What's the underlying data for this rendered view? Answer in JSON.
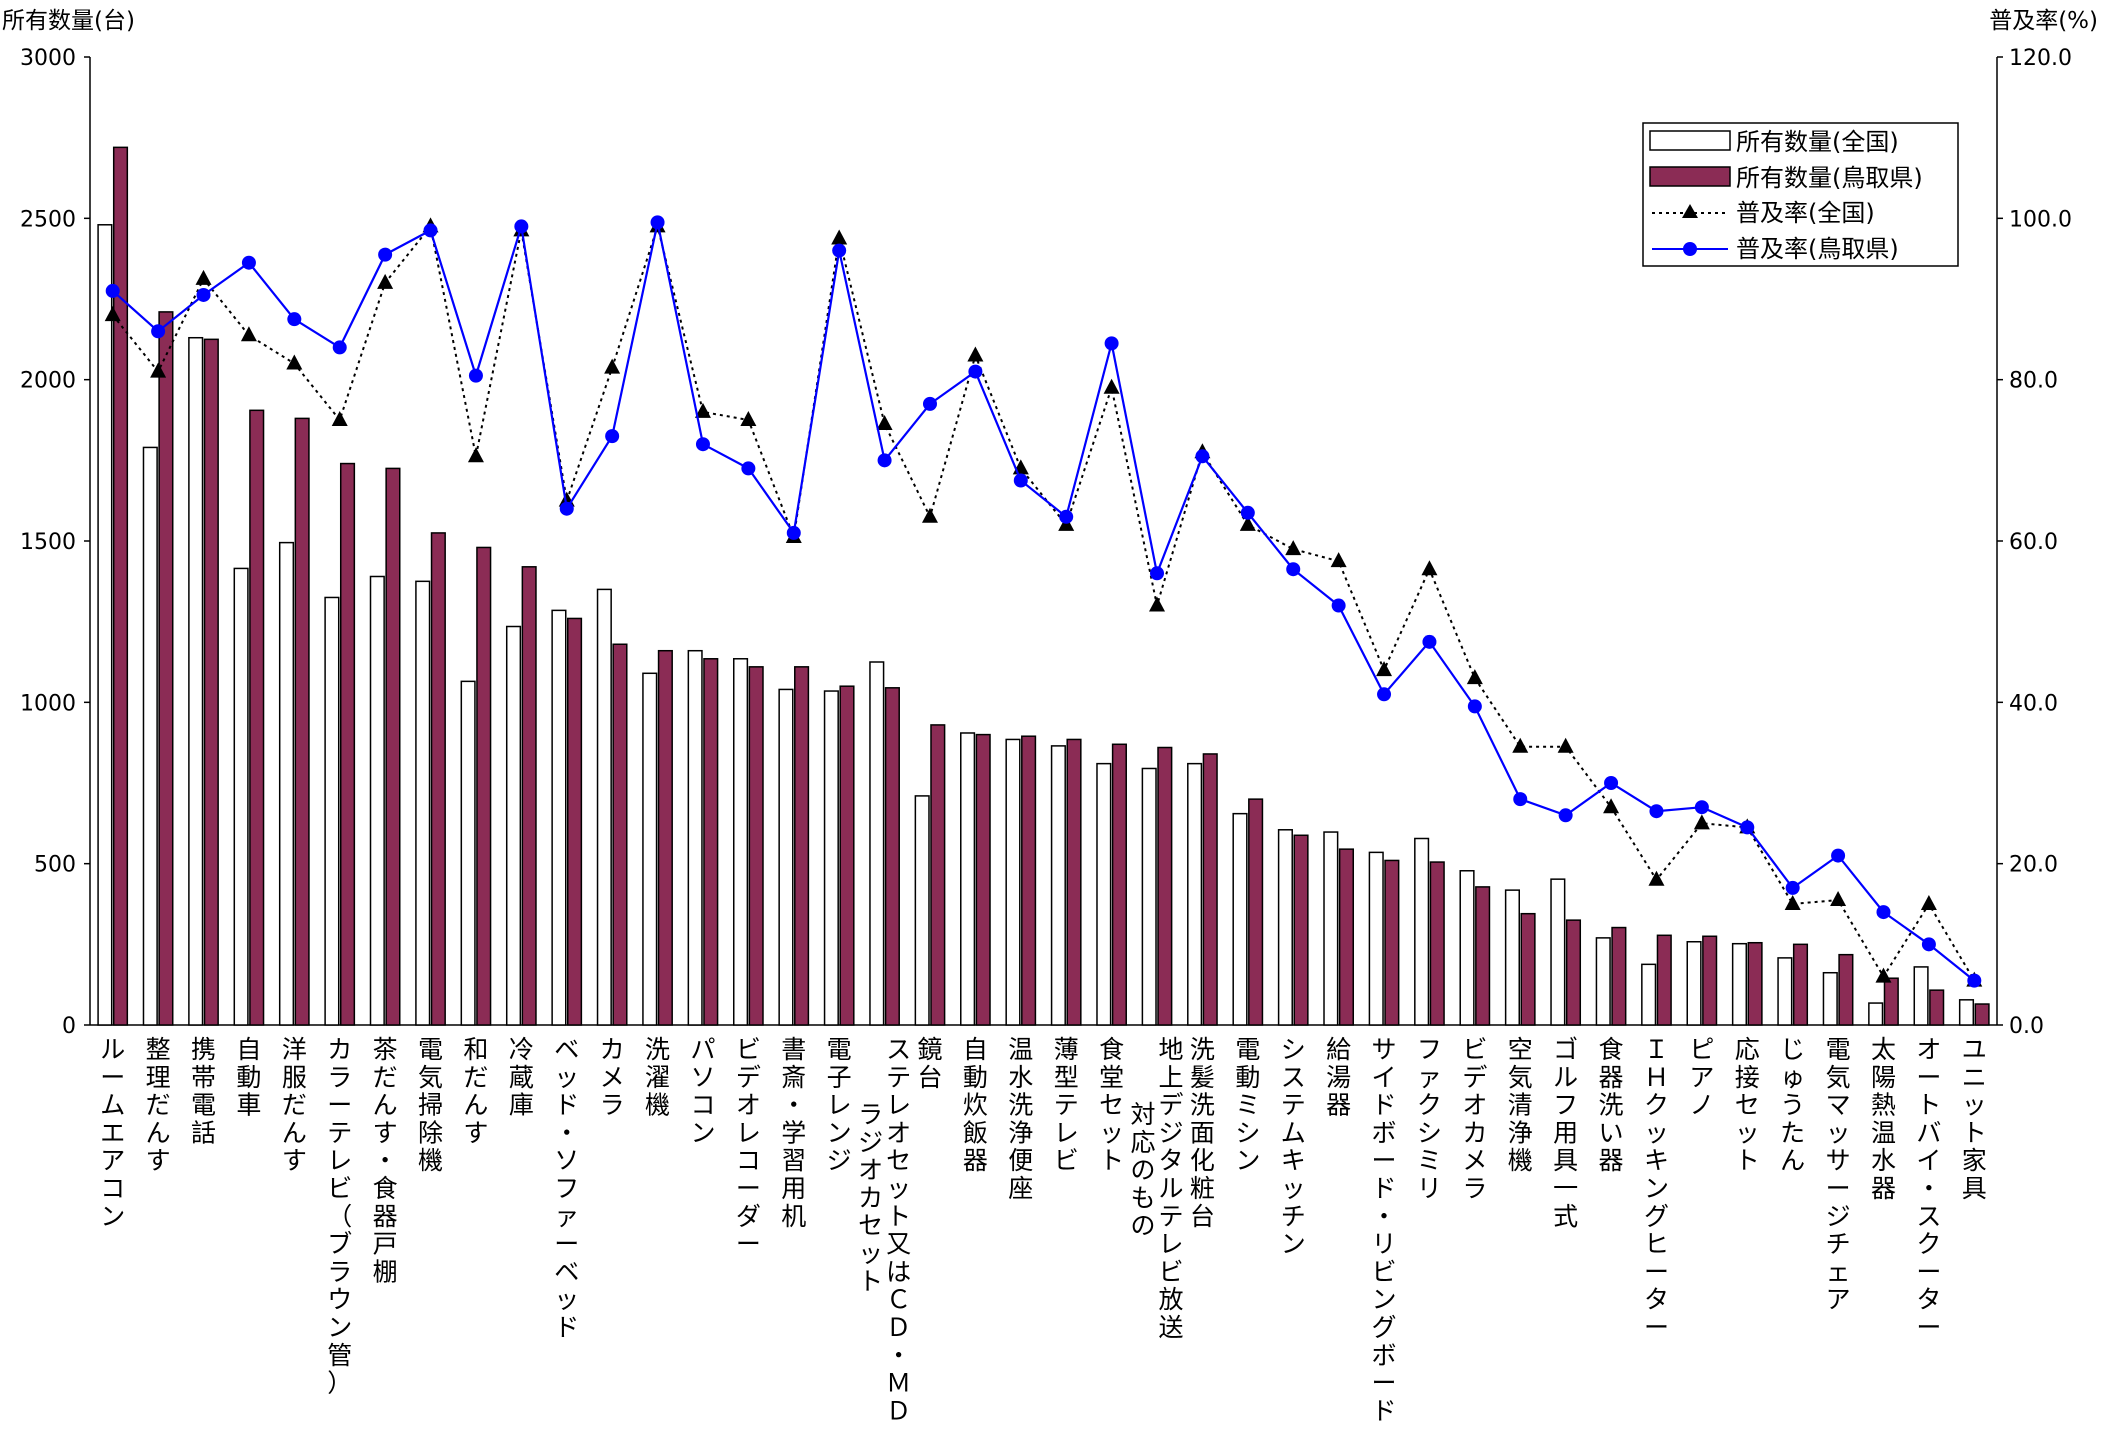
{
  "chart_data": {
    "type": "bar",
    "left_axis_title": "所有数量(台)",
    "right_axis_title": "普及率(%)",
    "left_ticks": [
      "0",
      "500",
      "1000",
      "1500",
      "2000",
      "2500",
      "3000"
    ],
    "right_ticks": [
      "0.0",
      "20.0",
      "40.0",
      "60.0",
      "80.0",
      "100.0",
      "120.0"
    ],
    "ylim_left": [
      0,
      3000
    ],
    "ylim_right": [
      0,
      120
    ],
    "grid": false,
    "legend_position": "top-right",
    "categories": [
      "ルームエアコン",
      "整理だんす",
      "携帯電話",
      "自動車",
      "洋服だんす",
      "カラーテレビ（ブラウン管）",
      "茶だんす・食器戸棚",
      "電気掃除機",
      "和だんす",
      "冷蔵庫",
      "ベッド・ソファーベッド",
      "カメラ",
      "洗濯機",
      "パソコン",
      "ビデオレコーダー",
      "書斎・学習用机",
      "電子レンジ",
      "ステレオセット又はＣＤ・ＭＤラジオカセット",
      "鏡台",
      "自動炊飯器",
      "温水洗浄便座",
      "薄型テレビ",
      "食堂セット",
      "地上デジタルテレビ放送対応のもの",
      "洗髪洗面化粧台",
      "電動ミシン",
      "システムキッチン",
      "給湯器",
      "サイドボード・リビングボード",
      "ファクシミリ",
      "ビデオカメラ",
      "空気清浄機",
      "ゴルフ用具一式",
      "食器洗い器",
      "ＩＨクッキングヒーター",
      "ピアノ",
      "応接セット",
      "じゅうたん",
      "電気マッサージチェア",
      "太陽熱温水器",
      "オートバイ・スクーター",
      "ユニット家具"
    ],
    "category_label_lines": [
      [
        "ルームエアコン"
      ],
      [
        "整理だんす"
      ],
      [
        "携帯電話"
      ],
      [
        "自動車"
      ],
      [
        "洋服だんす"
      ],
      [
        "カラーテレビ（ブラウン管）"
      ],
      [
        "茶だんす・食器戸棚"
      ],
      [
        "電気掃除機"
      ],
      [
        "和だんす"
      ],
      [
        "冷蔵庫"
      ],
      [
        "ベッド・ソファーベッド"
      ],
      [
        "カメラ"
      ],
      [
        "洗濯機"
      ],
      [
        "パソコン"
      ],
      [
        "ビデオレコーダー"
      ],
      [
        "書斎・学習用机"
      ],
      [
        "電子レンジ"
      ],
      [
        "ステレオセット又はＣＤ・ＭＤ",
        "ラジオカセット"
      ],
      [
        "鏡台"
      ],
      [
        "自動炊飯器"
      ],
      [
        "温水洗浄便座"
      ],
      [
        "薄型テレビ"
      ],
      [
        "食堂セット"
      ],
      [
        "地上デジタルテレビ放送",
        "対応のもの"
      ],
      [
        "洗髪洗面化粧台"
      ],
      [
        "電動ミシン"
      ],
      [
        "システムキッチン"
      ],
      [
        "給湯器"
      ],
      [
        "サイドボード・リビングボード"
      ],
      [
        "ファクシミリ"
      ],
      [
        "ビデオカメラ"
      ],
      [
        "空気清浄機"
      ],
      [
        "ゴルフ用具一式"
      ],
      [
        "食器洗い器"
      ],
      [
        "ＩＨクッキングヒーター"
      ],
      [
        "ピアノ"
      ],
      [
        "応接セット"
      ],
      [
        "じゅうたん"
      ],
      [
        "電気マッサージチェア"
      ],
      [
        "太陽熱温水器"
      ],
      [
        "オートバイ・スクーター"
      ],
      [
        "ユニット家具"
      ]
    ],
    "series": [
      {
        "name": "所有数量(全国)",
        "kind": "bar",
        "axis": "left",
        "color": "#ffffff",
        "values": [
          2480,
          1790,
          2130,
          1415,
          1495,
          1325,
          1390,
          1375,
          1065,
          1235,
          1285,
          1350,
          1090,
          1160,
          1135,
          1040,
          1035,
          1125,
          710,
          905,
          885,
          865,
          810,
          795,
          810,
          655,
          605,
          598,
          535,
          578,
          478,
          418,
          452,
          270,
          188,
          258,
          252,
          208,
          162,
          68,
          180,
          78
        ]
      },
      {
        "name": "所有数量(鳥取県)",
        "kind": "bar",
        "axis": "left",
        "color": "#8b2c55",
        "values": [
          2720,
          2210,
          2125,
          1905,
          1880,
          1740,
          1725,
          1525,
          1480,
          1420,
          1260,
          1180,
          1160,
          1135,
          1110,
          1110,
          1050,
          1045,
          930,
          900,
          895,
          885,
          870,
          860,
          840,
          700,
          588,
          545,
          510,
          505,
          428,
          345,
          325,
          302,
          278,
          275,
          255,
          250,
          218,
          145,
          108,
          65
        ]
      },
      {
        "name": "普及率(全国)",
        "kind": "line",
        "axis": "right",
        "color": "#000000",
        "style": "dotted",
        "marker": "triangle",
        "values": [
          88,
          81,
          92.5,
          85.5,
          82,
          75,
          92,
          99,
          70.5,
          98.5,
          65,
          81.5,
          99,
          76,
          75,
          60.5,
          97.5,
          74.5,
          63,
          83,
          69,
          62,
          79,
          52,
          71,
          62,
          59,
          57.5,
          44,
          56.5,
          43,
          34.5,
          34.5,
          27,
          18,
          25,
          24.5,
          15,
          15.5,
          6,
          15,
          5.5
        ]
      },
      {
        "name": "普及率(鳥取県)",
        "kind": "line",
        "axis": "right",
        "color": "#0000ff",
        "style": "solid",
        "marker": "circle",
        "values": [
          91,
          86,
          90.5,
          94.5,
          87.5,
          84,
          95.5,
          98.5,
          80.5,
          99,
          64,
          73,
          99.5,
          72,
          69,
          61,
          96,
          70,
          77,
          81,
          67.5,
          63,
          84.5,
          56,
          70.5,
          63.5,
          56.5,
          52,
          41,
          47.5,
          39.5,
          28,
          26,
          30,
          26.5,
          27,
          24.5,
          17,
          21,
          14,
          10,
          5.5
        ]
      }
    ]
  }
}
